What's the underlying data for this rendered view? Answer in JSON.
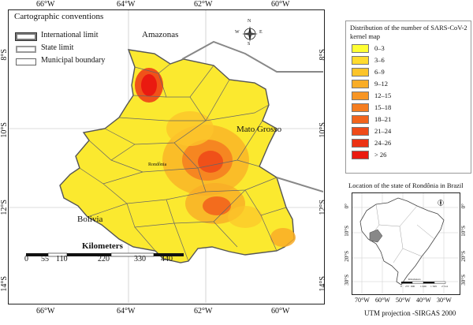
{
  "map": {
    "main_ticks_top": [
      "66°W",
      "64°W",
      "62°W",
      "60°W"
    ],
    "main_ticks_bottom": [
      "66°W",
      "64°W",
      "62°W",
      "60°W"
    ],
    "main_ticks_left": [
      "8°S",
      "10°S",
      "12°S",
      "14°S"
    ],
    "main_ticks_right": [
      "8°S",
      "10°S",
      "12°S",
      "14°S"
    ],
    "region_labels": {
      "amazonas": "Amazonas",
      "mato_grosso": "Mato Grosso",
      "bolivia": "Bolivia",
      "rondonia": "Rondônia"
    },
    "compass": {
      "n": "N",
      "s": "S",
      "e": "E",
      "w": "W"
    },
    "conventions": {
      "title": "Cartographic conventions",
      "items": [
        "International limit",
        "State limit",
        "Municipal boundary"
      ]
    },
    "scale_bar": {
      "title": "Kilometers",
      "labels": [
        "0",
        "55",
        "110",
        "220",
        "330",
        "440"
      ]
    }
  },
  "legend": {
    "title": "Distribution of the number of SARS-CoV-2 kernel map",
    "classes": [
      {
        "label": "0–3",
        "color": "#ffff33"
      },
      {
        "label": "3–6",
        "color": "#ffdb2e"
      },
      {
        "label": "6–9",
        "color": "#fcc42a"
      },
      {
        "label": "9–12",
        "color": "#f9ad27"
      },
      {
        "label": "12–15",
        "color": "#f79524"
      },
      {
        "label": "15–18",
        "color": "#f57d20"
      },
      {
        "label": "18–21",
        "color": "#f2641c"
      },
      {
        "label": "21–24",
        "color": "#ef4a18"
      },
      {
        "label": "24–26",
        "color": "#ec3214"
      },
      {
        "label": "> 26",
        "color": "#ea1a10"
      }
    ]
  },
  "inset": {
    "title": "Location of the state of Rondônia in Brazil",
    "ticks_left": [
      "0°",
      "10°S",
      "20°S",
      "30°S"
    ],
    "ticks_right": [
      "0°",
      "10°S",
      "20°S",
      "30°S"
    ],
    "ticks_bottom": [
      "70°W",
      "60°W",
      "50°W",
      "40°W",
      "30°W"
    ],
    "scale_labels": [
      "0",
      "257",
      "600",
      "1 026",
      "1 569",
      "2 514"
    ],
    "scale_title": "Kilometers",
    "projection": "UTM projection -SIRGAS 2000"
  }
}
